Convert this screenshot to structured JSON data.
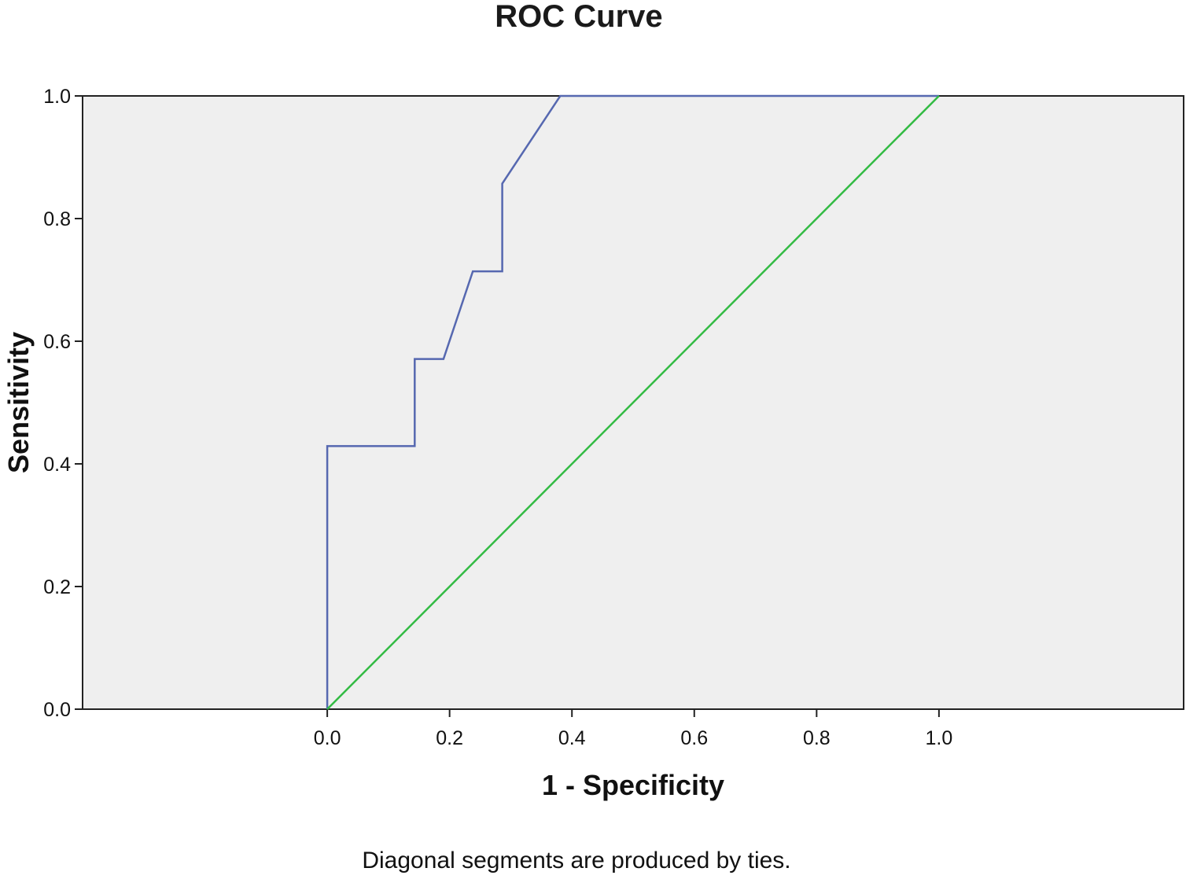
{
  "chart_data": {
    "type": "line",
    "title": "ROC Curve",
    "xlabel": "1 - Specificity",
    "ylabel": "Sensitivity",
    "xlim": [
      -0.4,
      1.4
    ],
    "ylim": [
      0.0,
      1.0
    ],
    "x_ticks": [
      "0.0",
      "0.2",
      "0.4",
      "0.6",
      "0.8",
      "1.0"
    ],
    "y_ticks": [
      "0.0",
      "0.2",
      "0.4",
      "0.6",
      "0.8",
      "1.0"
    ],
    "grid": false,
    "legend": "none",
    "plot_background": "#efefef",
    "series": [
      {
        "color": "#5668b0",
        "x": [
          0.0,
          0.0,
          0.143,
          0.143,
          0.19,
          0.238,
          0.286,
          0.286,
          0.381,
          1.0
        ],
        "y": [
          0.0,
          0.429,
          0.429,
          0.571,
          0.571,
          0.714,
          0.714,
          0.857,
          1.0,
          1.0
        ]
      },
      {
        "color": "#33bb44",
        "x": [
          0.0,
          1.0
        ],
        "y": [
          0.0,
          1.0
        ]
      }
    ],
    "footnote": "Diagonal segments are produced by ties."
  }
}
